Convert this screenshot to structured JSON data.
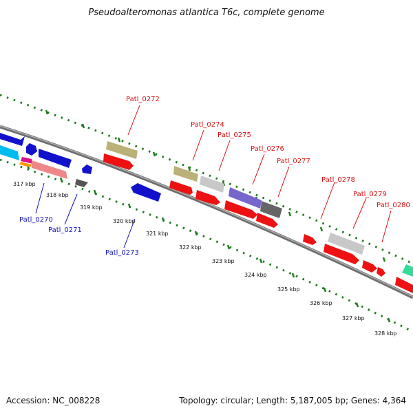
{
  "title": "Pseudoalteromonas atlantica T6c, complete genome",
  "footer": {
    "accession": "Accession: NC_008228",
    "summary": "Topology: circular; Length: 5,187,005 bp; Genes: 4,364"
  },
  "colors": {
    "backbone": "#8a8a8a",
    "tick": "#1f7a1f",
    "label_red": "#dd1111",
    "label_blue": "#1111bb"
  },
  "ticks": [
    "317 kbp",
    "318 kbp",
    "319 kbp",
    "320 kbp",
    "321 kbp",
    "322 kbp",
    "323 kbp",
    "324 kbp",
    "325 kbp",
    "326 kbp",
    "327 kbp",
    "328 kbp"
  ],
  "genes_top": [
    "Patl_0272",
    "Patl_0274",
    "Patl_0275",
    "Patl_0276",
    "Patl_0277",
    "Patl_0278",
    "Patl_0279",
    "Patl_0280"
  ],
  "genes_bottom": [
    "Patl_0270",
    "Patl_0271",
    "Patl_0273"
  ]
}
